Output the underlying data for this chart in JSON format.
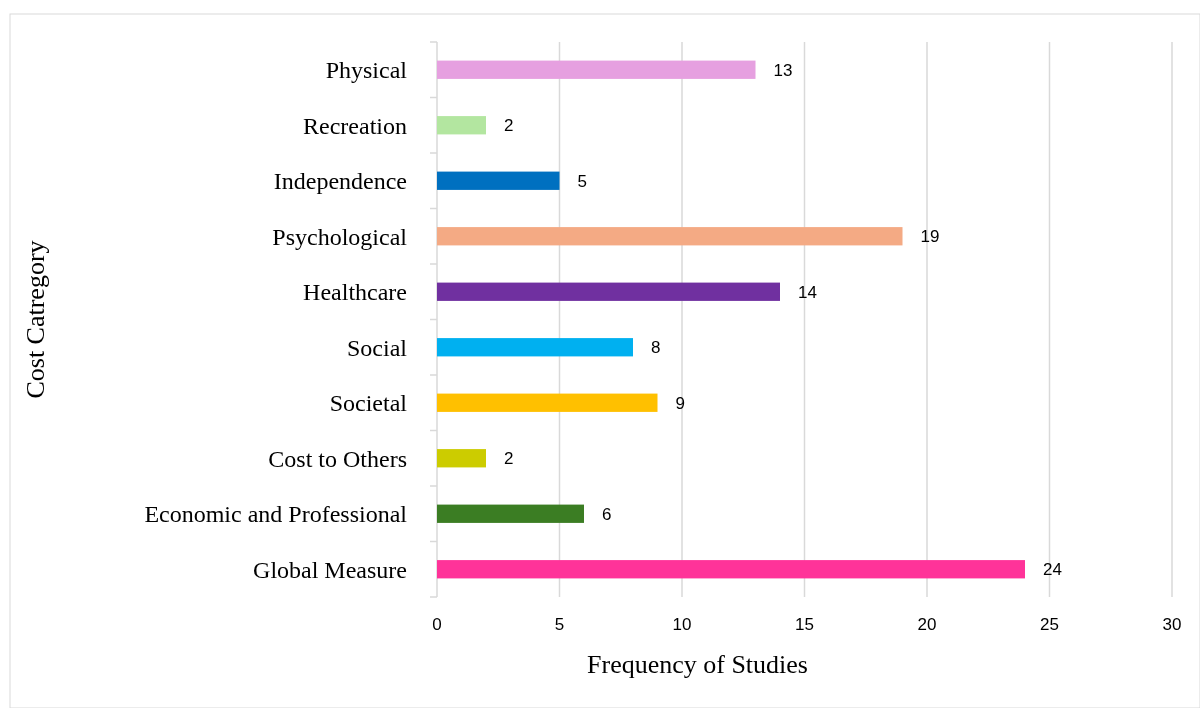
{
  "chart_data": {
    "type": "bar",
    "orientation": "horizontal",
    "xlabel": "Frequency of Studies",
    "ylabel": "Cost Catregory",
    "categories": [
      "Physical",
      "Recreation",
      "Independence",
      "Psychological",
      "Healthcare",
      "Social",
      "Societal",
      "Cost to Others",
      "Economic and Professional",
      "Global Measure"
    ],
    "values": [
      13,
      2,
      5,
      19,
      14,
      8,
      9,
      2,
      6,
      24
    ],
    "colors": [
      "#e6a0e0",
      "#b3e6a0",
      "#0070c0",
      "#f4aa84",
      "#7030a0",
      "#00b0f0",
      "#ffc000",
      "#cccc00",
      "#3b7d23",
      "#ff3399"
    ],
    "xlim": [
      0,
      30
    ],
    "xticks": [
      0,
      5,
      10,
      15,
      20,
      25,
      30
    ],
    "grid": "x",
    "data_labels": true
  }
}
